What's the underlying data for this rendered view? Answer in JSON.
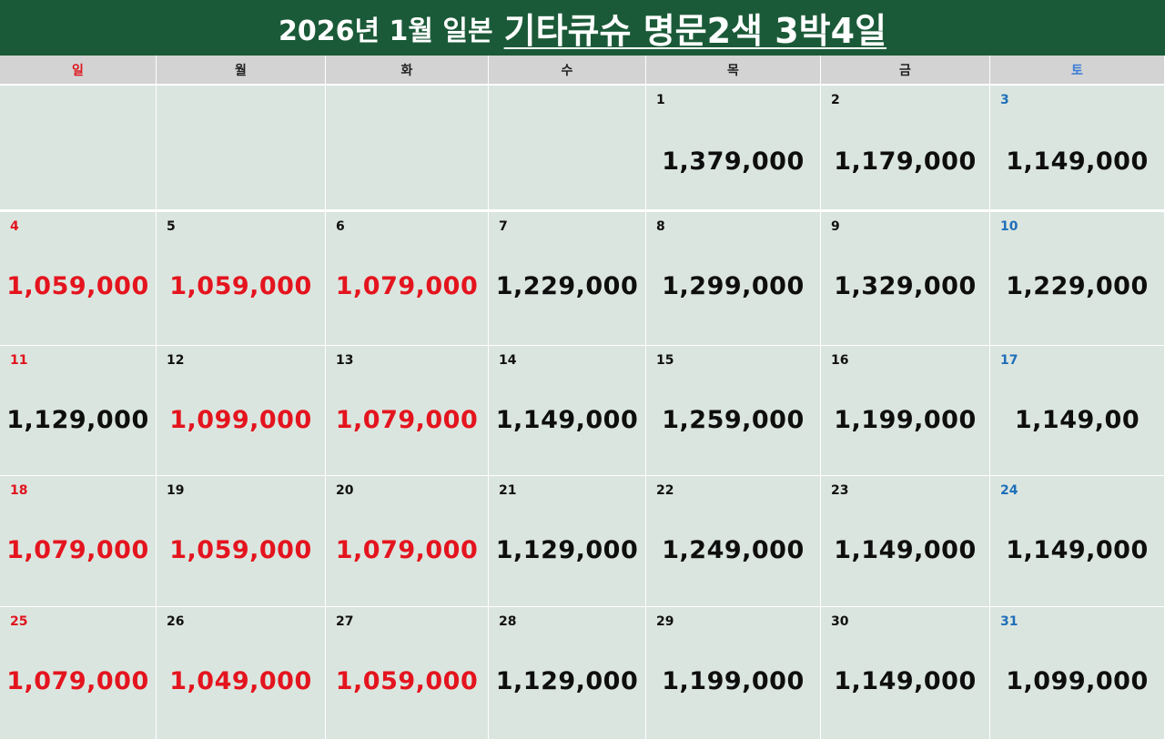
{
  "title": {
    "prefix": "2026년 1월 일본",
    "main": "기타큐슈 명문2색 3박4일"
  },
  "weekdays": [
    "일",
    "월",
    "화",
    "수",
    "목",
    "금",
    "토"
  ],
  "colors": {
    "header_bg": "#1b5a38",
    "cell_bg": "#dbe5df",
    "weekday_bg": "#d3d3d3",
    "price_red": "#e4141e",
    "price_black": "#0e0e0e",
    "sunday": "#e0141e",
    "saturday": "#1f6fb8"
  },
  "weeks": [
    [
      {
        "day": "",
        "price": "",
        "red": false
      },
      {
        "day": "",
        "price": "",
        "red": false
      },
      {
        "day": "",
        "price": "",
        "red": false
      },
      {
        "day": "",
        "price": "",
        "red": false
      },
      {
        "day": "1",
        "price": "1,379,000",
        "red": false
      },
      {
        "day": "2",
        "price": "1,179,000",
        "red": false
      },
      {
        "day": "3",
        "price": "1,149,000",
        "red": false
      }
    ],
    [
      {
        "day": "4",
        "price": "1,059,000",
        "red": true
      },
      {
        "day": "5",
        "price": "1,059,000",
        "red": true
      },
      {
        "day": "6",
        "price": "1,079,000",
        "red": true
      },
      {
        "day": "7",
        "price": "1,229,000",
        "red": false
      },
      {
        "day": "8",
        "price": "1,299,000",
        "red": false
      },
      {
        "day": "9",
        "price": "1,329,000",
        "red": false
      },
      {
        "day": "10",
        "price": "1,229,000",
        "red": false
      }
    ],
    [
      {
        "day": "11",
        "price": "1,129,000",
        "red": false
      },
      {
        "day": "12",
        "price": "1,099,000",
        "red": true
      },
      {
        "day": "13",
        "price": "1,079,000",
        "red": true
      },
      {
        "day": "14",
        "price": "1,149,000",
        "red": false
      },
      {
        "day": "15",
        "price": "1,259,000",
        "red": false
      },
      {
        "day": "16",
        "price": "1,199,000",
        "red": false
      },
      {
        "day": "17",
        "price": "1,149,00",
        "red": false
      }
    ],
    [
      {
        "day": "18",
        "price": "1,079,000",
        "red": true
      },
      {
        "day": "19",
        "price": "1,059,000",
        "red": true
      },
      {
        "day": "20",
        "price": "1,079,000",
        "red": true
      },
      {
        "day": "21",
        "price": "1,129,000",
        "red": false
      },
      {
        "day": "22",
        "price": "1,249,000",
        "red": false
      },
      {
        "day": "23",
        "price": "1,149,000",
        "red": false
      },
      {
        "day": "24",
        "price": "1,149,000",
        "red": false
      }
    ],
    [
      {
        "day": "25",
        "price": "1,079,000",
        "red": true
      },
      {
        "day": "26",
        "price": "1,049,000",
        "red": true
      },
      {
        "day": "27",
        "price": "1,059,000",
        "red": true
      },
      {
        "day": "28",
        "price": "1,129,000",
        "red": false
      },
      {
        "day": "29",
        "price": "1,199,000",
        "red": false
      },
      {
        "day": "30",
        "price": "1,149,000",
        "red": false
      },
      {
        "day": "31",
        "price": "1,099,000",
        "red": false
      }
    ]
  ]
}
